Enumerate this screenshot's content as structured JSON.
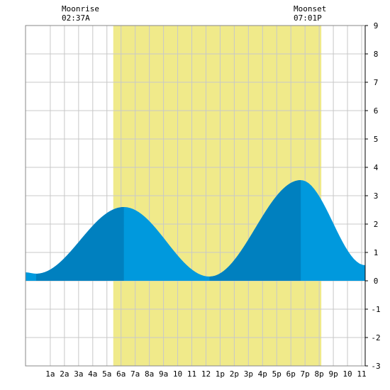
{
  "annotations": {
    "moonrise_label": "Moonrise",
    "moonrise_time": "02:37A",
    "moonset_label": "Moonset",
    "moonset_time": "07:01P"
  },
  "chart_data": {
    "type": "area",
    "x_unit": "hour of day",
    "xlim": [
      -0.75,
      23.25
    ],
    "ylim": [
      -3,
      9
    ],
    "x_tick_labels": [
      "1a",
      "2a",
      "3a",
      "4a",
      "5a",
      "6a",
      "7a",
      "8a",
      "9a",
      "10",
      "11",
      "12",
      "1p",
      "2p",
      "3p",
      "4p",
      "5p",
      "6p",
      "7p",
      "8p",
      "9p",
      "10",
      "11"
    ],
    "x_ticks": [
      1,
      2,
      3,
      4,
      5,
      6,
      7,
      8,
      9,
      10,
      11,
      12,
      13,
      14,
      15,
      16,
      17,
      18,
      19,
      20,
      21,
      22,
      23
    ],
    "y_ticks": [
      -3,
      -2,
      -1,
      0,
      1,
      2,
      3,
      4,
      5,
      6,
      7,
      8,
      9
    ],
    "grid": true,
    "daylight": {
      "start": 5.45,
      "end": 20.15,
      "color": "#f0ea8a"
    },
    "tide": {
      "low_1": {
        "time": 0.0,
        "height": 0.25
      },
      "high_1": {
        "time": 6.2,
        "height": 2.6
      },
      "low_2": {
        "time": 12.25,
        "height": 0.15
      },
      "high_2": {
        "time": 18.7,
        "height": 3.55
      },
      "points": [
        [
          -0.75,
          0.3
        ],
        [
          0.0,
          0.25
        ],
        [
          6.2,
          2.6
        ],
        [
          12.25,
          0.15
        ],
        [
          18.7,
          3.55
        ],
        [
          23.25,
          0.55
        ]
      ]
    },
    "dark_bands": [
      [
        0.0,
        6.2
      ],
      [
        12.25,
        18.7
      ]
    ],
    "colors": {
      "tide_light": "#0099dd",
      "tide_dark": "#0080bf",
      "grid": "#c8c8c8",
      "axis": "#000000"
    }
  }
}
